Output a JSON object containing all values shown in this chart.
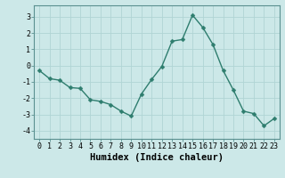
{
  "x": [
    0,
    1,
    2,
    3,
    4,
    5,
    6,
    7,
    8,
    9,
    10,
    11,
    12,
    13,
    14,
    15,
    16,
    17,
    18,
    19,
    20,
    21,
    22,
    23
  ],
  "y": [
    -0.3,
    -0.8,
    -0.9,
    -1.35,
    -1.4,
    -2.1,
    -2.2,
    -2.4,
    -2.8,
    -3.1,
    -1.75,
    -0.85,
    -0.05,
    1.5,
    1.6,
    3.1,
    2.35,
    1.3,
    -0.3,
    -1.5,
    -2.8,
    -2.95,
    -3.7,
    -3.25
  ],
  "line_color": "#2e7d6e",
  "marker": "D",
  "marker_size": 2.5,
  "bg_color": "#cce8e8",
  "grid_color": "#b0d4d4",
  "xlabel": "Humidex (Indice chaleur)",
  "ylim": [
    -4.5,
    3.7
  ],
  "xlim": [
    -0.5,
    23.5
  ],
  "yticks": [
    -4,
    -3,
    -2,
    -1,
    0,
    1,
    2,
    3
  ],
  "xticks": [
    0,
    1,
    2,
    3,
    4,
    5,
    6,
    7,
    8,
    9,
    10,
    11,
    12,
    13,
    14,
    15,
    16,
    17,
    18,
    19,
    20,
    21,
    22,
    23
  ],
  "tick_fontsize": 6,
  "label_fontsize": 7.5
}
